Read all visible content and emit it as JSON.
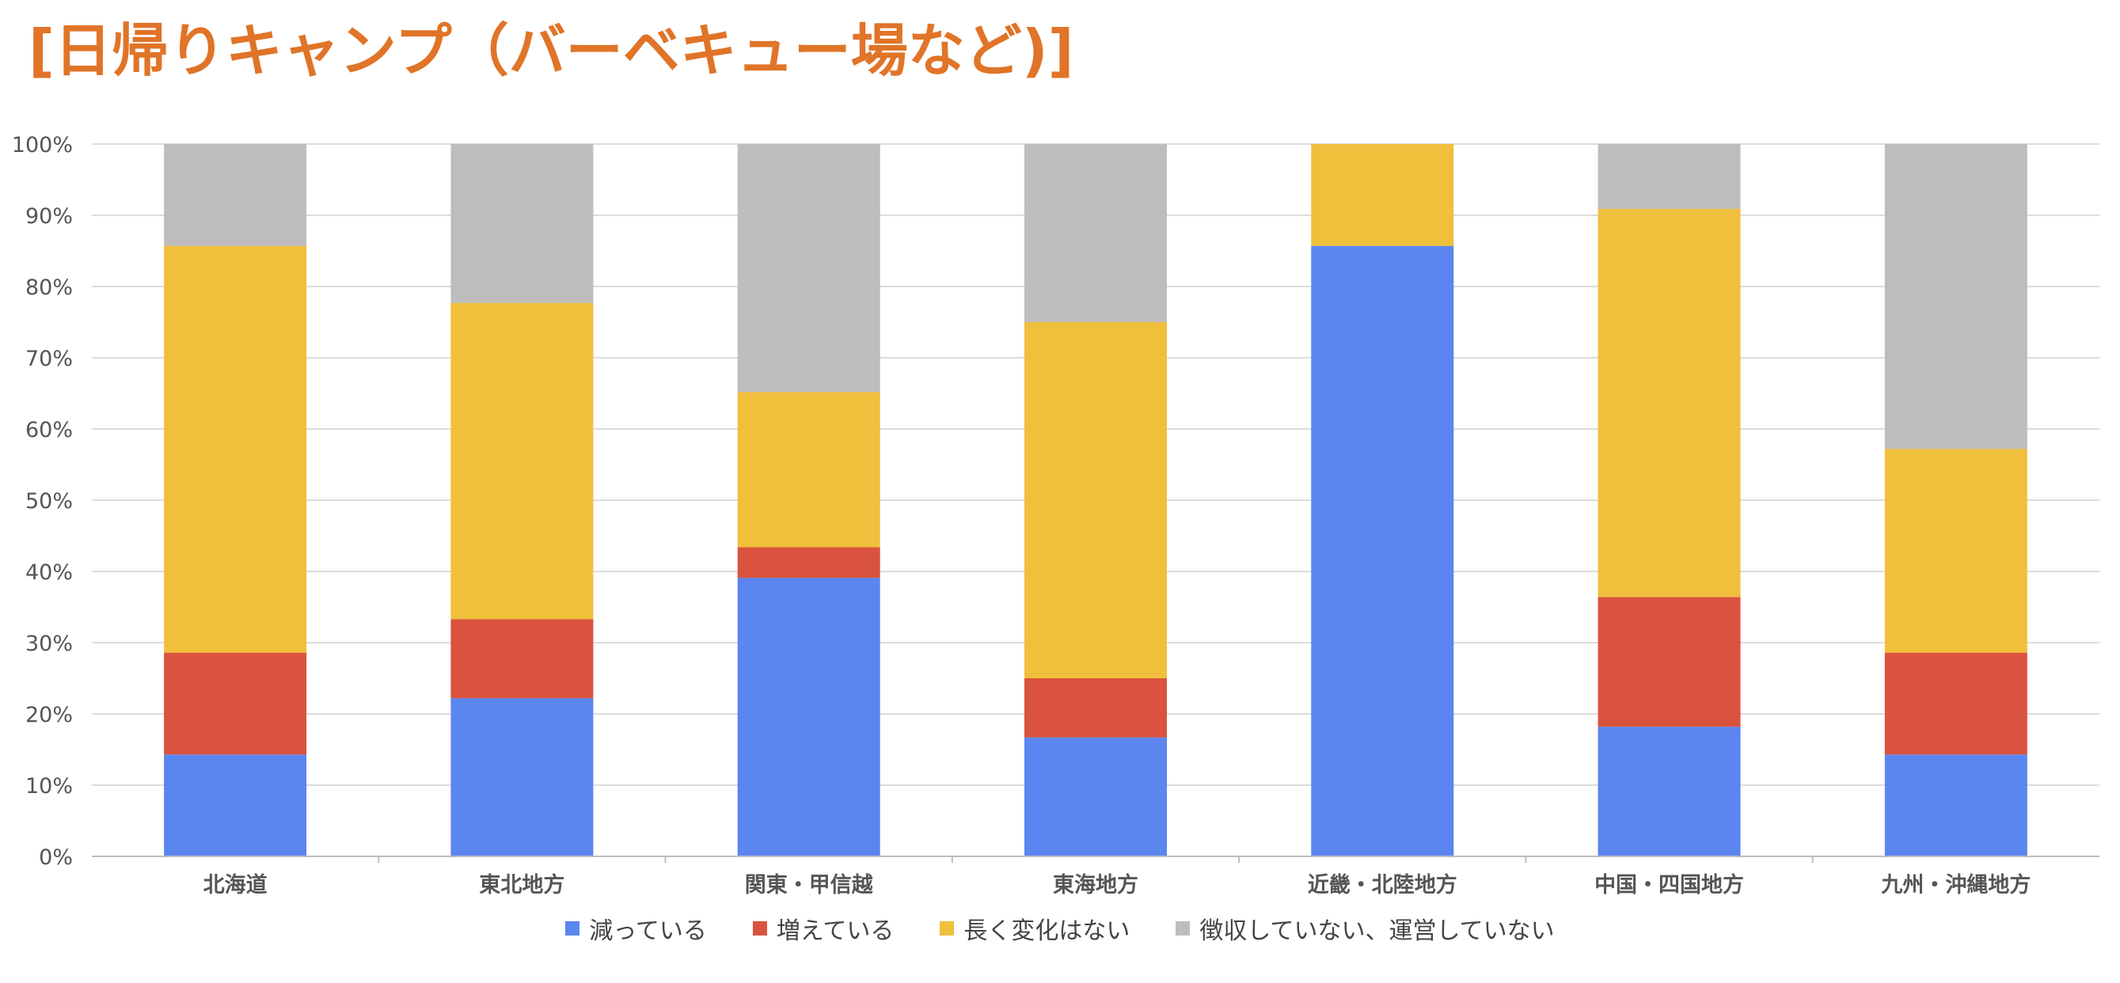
{
  "page": {
    "title": "[日帰りキャンプ（バーベキュー場など)]"
  },
  "chart_data": {
    "type": "bar",
    "stacked": true,
    "normalized": true,
    "categories": [
      "北海道",
      "東北地方",
      "関東・甲信越",
      "東海地方",
      "近畿・北陸地方",
      "中国・四国地方",
      "九州・沖縄地方"
    ],
    "series": [
      {
        "name": "減っている",
        "color": "#5b85ef",
        "values": [
          14.3,
          22.2,
          39.1,
          16.7,
          85.7,
          18.2,
          14.3
        ]
      },
      {
        "name": "増えている",
        "color": "#d9533e",
        "values": [
          14.3,
          11.1,
          4.3,
          8.3,
          0.0,
          18.2,
          14.3
        ]
      },
      {
        "name": "長く変化はない",
        "color": "#f0bf3c",
        "values": [
          57.1,
          44.4,
          21.8,
          50.0,
          14.3,
          54.5,
          28.6
        ]
      },
      {
        "name": "徴収していない、運営していない",
        "color": "#bdbdbd",
        "values": [
          14.3,
          22.3,
          34.8,
          25.0,
          0.0,
          9.1,
          42.8
        ]
      }
    ],
    "yticks": [
      "0%",
      "10%",
      "20%",
      "30%",
      "40%",
      "50%",
      "60%",
      "70%",
      "80%",
      "90%",
      "100%"
    ],
    "ylim": [
      0,
      100
    ],
    "grid": true,
    "legend_position": "bottom",
    "title": "",
    "xlabel": "",
    "ylabel": ""
  }
}
